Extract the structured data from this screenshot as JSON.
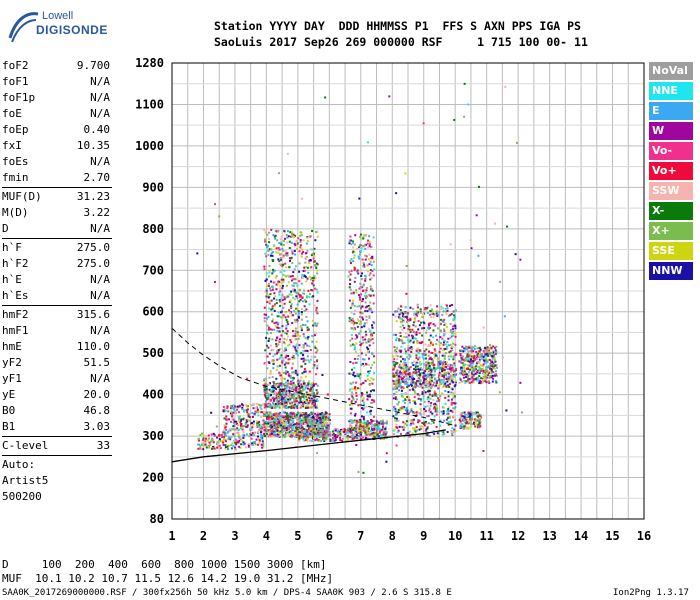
{
  "logo": {
    "line1": "Lowell",
    "line2": "DIGISONDE"
  },
  "header": {
    "line1": "Station YYYY DAY  DDD HHMMSS P1  FFS S AXN PPS IGA PS",
    "line2": "SaoLuis 2017 Sep26 269 000000 RSF     1 715 100 00- 11"
  },
  "params": [
    {
      "label": "foF2",
      "value": "9.700",
      "sep": false
    },
    {
      "label": "foF1",
      "value": "N/A",
      "sep": false
    },
    {
      "label": "foF1p",
      "value": "N/A",
      "sep": false
    },
    {
      "label": "foE",
      "value": "N/A",
      "sep": false
    },
    {
      "label": "foEp",
      "value": "0.40",
      "sep": false
    },
    {
      "label": "fxI",
      "value": "10.35",
      "sep": false
    },
    {
      "label": "foEs",
      "value": "N/A",
      "sep": false
    },
    {
      "label": "fmin",
      "value": "2.70",
      "sep": true
    },
    {
      "label": "MUF(D)",
      "value": "31.23",
      "sep": false
    },
    {
      "label": "M(D)",
      "value": "3.22",
      "sep": false
    },
    {
      "label": "D",
      "value": "N/A",
      "sep": true
    },
    {
      "label": "h`F",
      "value": "275.0",
      "sep": false
    },
    {
      "label": "h`F2",
      "value": "275.0",
      "sep": false
    },
    {
      "label": "h`E",
      "value": "N/A",
      "sep": false
    },
    {
      "label": "h`Es",
      "value": "N/A",
      "sep": true
    },
    {
      "label": "hmF2",
      "value": "315.6",
      "sep": false
    },
    {
      "label": "hmF1",
      "value": "N/A",
      "sep": false
    },
    {
      "label": "hmE",
      "value": "110.0",
      "sep": false
    },
    {
      "label": "yF2",
      "value": "51.5",
      "sep": false
    },
    {
      "label": "yF1",
      "value": "N/A",
      "sep": false
    },
    {
      "label": "yE",
      "value": "20.0",
      "sep": false
    },
    {
      "label": "B0",
      "value": "46.8",
      "sep": false
    },
    {
      "label": "B1",
      "value": "3.03",
      "sep": true
    },
    {
      "label": "C-level",
      "value": "33",
      "sep": true
    }
  ],
  "auto": {
    "line1": "Auto:",
    "line2": "Artist5",
    "line3": "500200"
  },
  "legend": [
    {
      "label": "NoVal",
      "bg": "#9e9e9e",
      "fg": "#ffffff"
    },
    {
      "label": "NNE",
      "bg": "#1fe6ee",
      "fg": "#ffffff"
    },
    {
      "label": "E",
      "bg": "#3aa8f2",
      "fg": "#ffffff"
    },
    {
      "label": "W",
      "bg": "#a0069e",
      "fg": "#ffffff"
    },
    {
      "label": "Vo-",
      "bg": "#f0308c",
      "fg": "#ffffff"
    },
    {
      "label": "Vo+",
      "bg": "#ee0a3a",
      "fg": "#ffffff"
    },
    {
      "label": "SSW",
      "bg": "#f7b3ae",
      "fg": "#ffffff"
    },
    {
      "label": "X-",
      "bg": "#0a7a0a",
      "fg": "#ffffff"
    },
    {
      "label": "X+",
      "bg": "#7abc4e",
      "fg": "#ffffff"
    },
    {
      "label": "SSE",
      "bg": "#cfd410",
      "fg": "#ffffff"
    },
    {
      "label": "NNW",
      "bg": "#1a10a8",
      "fg": "#ffffff"
    }
  ],
  "chart_data": {
    "type": "scatter",
    "x_ticks": [
      "1",
      "2",
      "3",
      "4",
      "5",
      "6",
      "7",
      "8",
      "9",
      "10",
      "11",
      "12",
      "13",
      "14",
      "15",
      "16"
    ],
    "y_ticks": [
      "80",
      "200",
      "300",
      "400",
      "500",
      "600",
      "700",
      "800",
      "900",
      "1000",
      "1100",
      "1280"
    ],
    "xlim": [
      1,
      16
    ],
    "y_tick_values": [
      80,
      200,
      300,
      400,
      500,
      600,
      700,
      800,
      900,
      1000,
      1100,
      1280
    ],
    "grid": true,
    "trace_series": [
      "NoVal",
      "NNE",
      "E",
      "W",
      "Vo-",
      "Vo+",
      "SSW",
      "X-",
      "X+",
      "SSE",
      "NNW"
    ],
    "o_trace_solid": [
      [
        1,
        238
      ],
      [
        2,
        250
      ],
      [
        4,
        265
      ],
      [
        6,
        282
      ],
      [
        7,
        290
      ],
      [
        8,
        298
      ],
      [
        9,
        306
      ],
      [
        9.7,
        315
      ]
    ],
    "x_trace_dashed": [
      [
        1,
        560
      ],
      [
        1.5,
        525
      ],
      [
        2,
        495
      ],
      [
        2.6,
        465
      ],
      [
        3.2,
        440
      ],
      [
        4,
        420
      ],
      [
        5,
        405
      ],
      [
        6,
        390
      ],
      [
        7,
        375
      ],
      [
        8,
        360
      ],
      [
        9,
        345
      ],
      [
        10,
        325
      ]
    ]
  },
  "bottom": {
    "d_line": "D     100  200  400  600  800 1000 1500 3000 [km]",
    "muf_line": "MUF  10.1 10.2 10.7 11.5 12.6 14.2 19.0 31.2 [MHz]"
  },
  "footer": {
    "left": "SAA0K_2017269000000.RSF / 300fx256h 50 kHz 5.0 km / DPS-4 SAA0K 903 / 2.6 S 315.8 E",
    "right": "Ion2Png 1.3.17"
  }
}
